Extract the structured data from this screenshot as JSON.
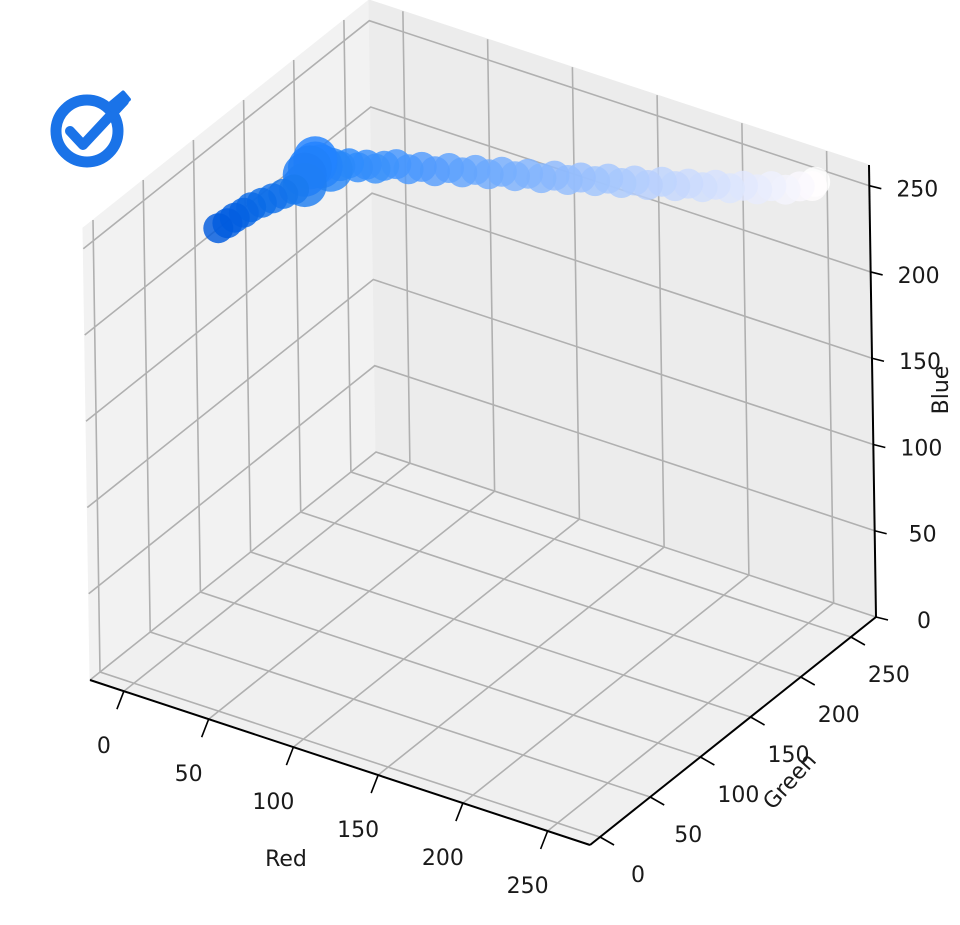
{
  "chart_data": {
    "type": "scatter",
    "projection": "3d",
    "title": "",
    "xlabel": "Red",
    "ylabel": "Green",
    "zlabel": "Blue",
    "xlim": [
      -20,
      275
    ],
    "ylim": [
      -10,
      275
    ],
    "zlim": [
      0,
      262
    ],
    "x_ticks": [
      "0",
      "50",
      "100",
      "150",
      "200",
      "250"
    ],
    "y_ticks": [
      "0",
      "50",
      "100",
      "150",
      "200",
      "250"
    ],
    "z_ticks": [
      "0",
      "50",
      "100",
      "150",
      "200",
      "250"
    ],
    "grid": true,
    "marker_color_rule": "each point is colored rgb(Red, Green, Blue)",
    "points": [
      [
        0,
        90,
        222
      ],
      [
        3,
        94,
        224
      ],
      [
        5,
        98,
        226
      ],
      [
        8,
        102,
        228
      ],
      [
        10,
        106,
        230
      ],
      [
        14,
        110,
        232
      ],
      [
        18,
        114,
        234
      ],
      [
        22,
        118,
        236
      ],
      [
        26,
        122,
        238
      ],
      [
        30,
        126,
        240
      ],
      [
        30,
        126,
        246
      ],
      [
        32,
        128,
        250
      ],
      [
        34,
        130,
        252
      ],
      [
        34,
        130,
        255
      ],
      [
        36,
        132,
        250
      ],
      [
        40,
        135,
        248
      ],
      [
        44,
        138,
        250
      ],
      [
        48,
        140,
        252
      ],
      [
        52,
        142,
        250
      ],
      [
        56,
        144,
        252
      ],
      [
        60,
        146,
        250
      ],
      [
        64,
        148,
        252
      ],
      [
        70,
        150,
        254
      ],
      [
        76,
        152,
        252
      ],
      [
        82,
        155,
        254
      ],
      [
        88,
        158,
        252
      ],
      [
        94,
        162,
        254
      ],
      [
        100,
        165,
        252
      ],
      [
        106,
        168,
        254
      ],
      [
        112,
        171,
        252
      ],
      [
        118,
        174,
        254
      ],
      [
        124,
        177,
        252
      ],
      [
        130,
        180,
        254
      ],
      [
        136,
        183,
        252
      ],
      [
        142,
        186,
        254
      ],
      [
        148,
        189,
        252
      ],
      [
        154,
        192,
        254
      ],
      [
        160,
        196,
        252
      ],
      [
        166,
        199,
        254
      ],
      [
        172,
        202,
        252
      ],
      [
        178,
        205,
        254
      ],
      [
        184,
        208,
        252
      ],
      [
        190,
        212,
        254
      ],
      [
        196,
        215,
        252
      ],
      [
        202,
        218,
        254
      ],
      [
        208,
        222,
        252
      ],
      [
        214,
        225,
        254
      ],
      [
        220,
        229,
        252
      ],
      [
        226,
        232,
        254
      ],
      [
        232,
        236,
        252
      ],
      [
        238,
        240,
        254
      ],
      [
        244,
        244,
        252
      ],
      [
        250,
        248,
        254
      ],
      [
        255,
        252,
        254
      ],
      [
        255,
        255,
        255
      ]
    ],
    "icon": "check-circle-icon"
  }
}
